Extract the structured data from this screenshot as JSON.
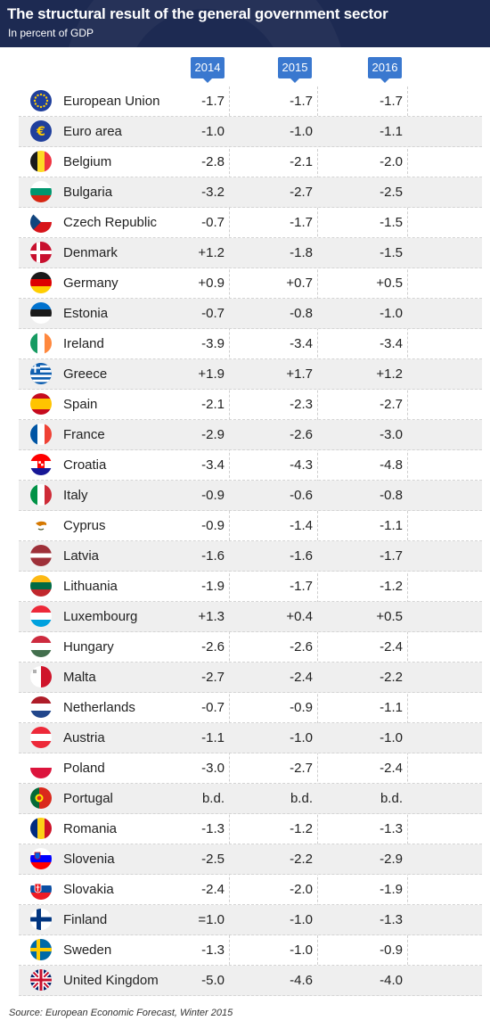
{
  "header": {
    "title": "The structural result of the general government sector",
    "subtitle": "In percent of GDP"
  },
  "source": "Source: European Economic Forecast, Winter 2015",
  "chart_data": {
    "type": "table",
    "title": "The structural result of the general government sector",
    "subtitle": "In percent of GDP",
    "columns": [
      "2014",
      "2015",
      "2016"
    ],
    "rows": [
      {
        "country": "European Union",
        "flag": "eu-flag-icon",
        "values": [
          "-1.7",
          "-1.7",
          "-1.7"
        ]
      },
      {
        "country": "Euro area",
        "flag": "euro-icon",
        "values": [
          "-1.0",
          "-1.0",
          "-1.1"
        ]
      },
      {
        "country": "Belgium",
        "flag": "belgium-flag-icon",
        "values": [
          "-2.8",
          "-2.1",
          "-2.0"
        ]
      },
      {
        "country": "Bulgaria",
        "flag": "bulgaria-flag-icon",
        "values": [
          "-3.2",
          "-2.7",
          "-2.5"
        ]
      },
      {
        "country": "Czech Republic",
        "flag": "czech-flag-icon",
        "values": [
          "-0.7",
          "-1.7",
          "-1.5"
        ]
      },
      {
        "country": "Denmark",
        "flag": "denmark-flag-icon",
        "values": [
          "+1.2",
          "-1.8",
          "-1.5"
        ]
      },
      {
        "country": "Germany",
        "flag": "germany-flag-icon",
        "values": [
          "+0.9",
          "+0.7",
          "+0.5"
        ]
      },
      {
        "country": "Estonia",
        "flag": "estonia-flag-icon",
        "values": [
          "-0.7",
          "-0.8",
          "-1.0"
        ]
      },
      {
        "country": "Ireland",
        "flag": "ireland-flag-icon",
        "values": [
          "-3.9",
          "-3.4",
          "-3.4"
        ]
      },
      {
        "country": "Greece",
        "flag": "greece-flag-icon",
        "values": [
          "+1.9",
          "+1.7",
          "+1.2"
        ]
      },
      {
        "country": "Spain",
        "flag": "spain-flag-icon",
        "values": [
          "-2.1",
          "-2.3",
          "-2.7"
        ]
      },
      {
        "country": "France",
        "flag": "france-flag-icon",
        "values": [
          "-2.9",
          "-2.6",
          "-3.0"
        ]
      },
      {
        "country": "Croatia",
        "flag": "croatia-flag-icon",
        "values": [
          "-3.4",
          "-4.3",
          "-4.8"
        ]
      },
      {
        "country": "Italy",
        "flag": "italy-flag-icon",
        "values": [
          "-0.9",
          "-0.6",
          "-0.8"
        ]
      },
      {
        "country": "Cyprus",
        "flag": "cyprus-flag-icon",
        "values": [
          "-0.9",
          "-1.4",
          "-1.1"
        ]
      },
      {
        "country": "Latvia",
        "flag": "latvia-flag-icon",
        "values": [
          "-1.6",
          "-1.6",
          "-1.7"
        ]
      },
      {
        "country": "Lithuania",
        "flag": "lithuania-flag-icon",
        "values": [
          "-1.9",
          "-1.7",
          "-1.2"
        ]
      },
      {
        "country": "Luxembourg",
        "flag": "luxembourg-flag-icon",
        "values": [
          "+1.3",
          "+0.4",
          "+0.5"
        ]
      },
      {
        "country": "Hungary",
        "flag": "hungary-flag-icon",
        "values": [
          "-2.6",
          "-2.6",
          "-2.4"
        ]
      },
      {
        "country": "Malta",
        "flag": "malta-flag-icon",
        "values": [
          "-2.7",
          "-2.4",
          "-2.2"
        ]
      },
      {
        "country": "Netherlands",
        "flag": "netherlands-flag-icon",
        "values": [
          "-0.7",
          "-0.9",
          "-1.1"
        ]
      },
      {
        "country": "Austria",
        "flag": "austria-flag-icon",
        "values": [
          "-1.1",
          "-1.0",
          "-1.0"
        ]
      },
      {
        "country": "Poland",
        "flag": "poland-flag-icon",
        "values": [
          "-3.0",
          "-2.7",
          "-2.4"
        ]
      },
      {
        "country": "Portugal",
        "flag": "portugal-flag-icon",
        "values": [
          "b.d.",
          "b.d.",
          "b.d."
        ]
      },
      {
        "country": "Romania",
        "flag": "romania-flag-icon",
        "values": [
          "-1.3",
          "-1.2",
          "-1.3"
        ]
      },
      {
        "country": "Slovenia",
        "flag": "slovenia-flag-icon",
        "values": [
          "-2.5",
          "-2.2",
          "-2.9"
        ]
      },
      {
        "country": "Slovakia",
        "flag": "slovakia-flag-icon",
        "values": [
          "-2.4",
          "-2.0",
          "-1.9"
        ]
      },
      {
        "country": "Finland",
        "flag": "finland-flag-icon",
        "values": [
          "=1.0",
          "-1.0",
          "-1.3"
        ]
      },
      {
        "country": "Sweden",
        "flag": "sweden-flag-icon",
        "values": [
          "-1.3",
          "-1.0",
          "-0.9"
        ]
      },
      {
        "country": "United Kingdom",
        "flag": "uk-flag-icon",
        "values": [
          "-5.0",
          "-4.6",
          "-4.0"
        ]
      }
    ]
  },
  "colors": {
    "header_bg": "#1d2a52",
    "year_badge": "#3a78cf",
    "row_alt": "#efefef"
  }
}
